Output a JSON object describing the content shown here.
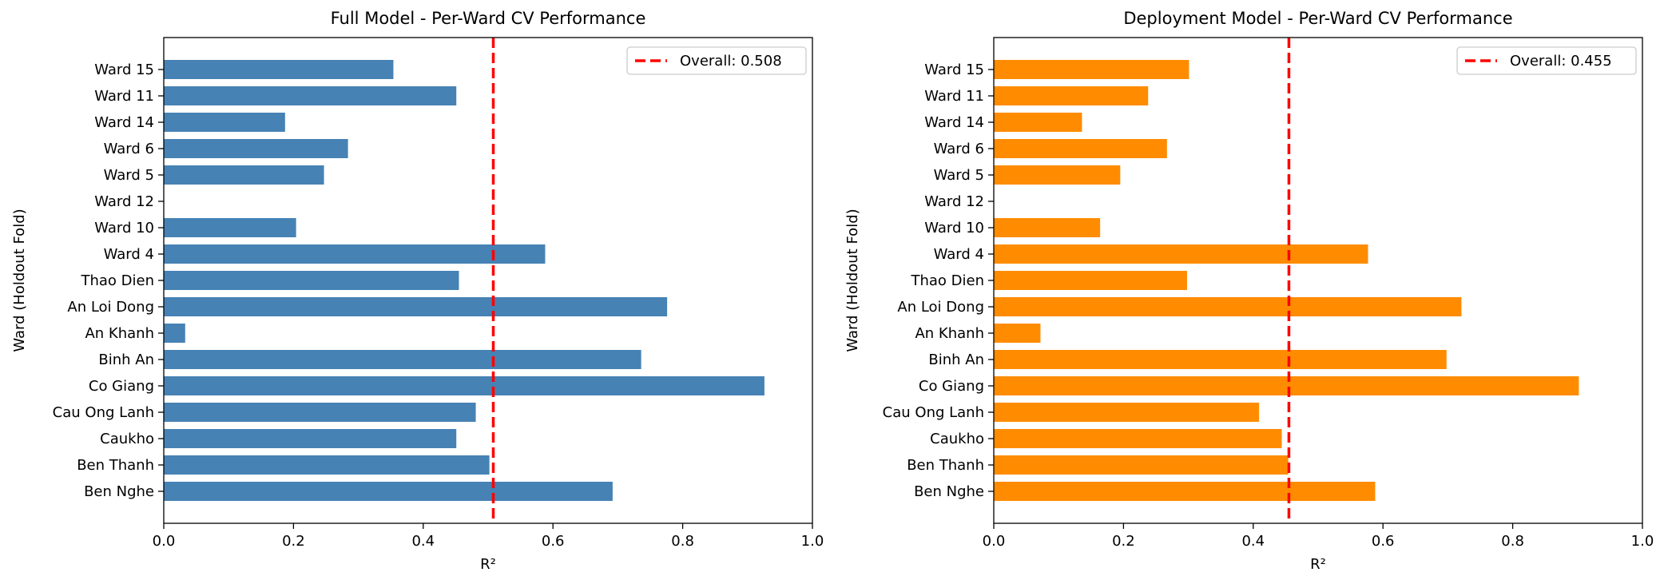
{
  "chart_data": [
    {
      "type": "bar",
      "orientation": "horizontal",
      "title": "Full Model - Per-Ward CV Performance",
      "xlabel": "R²",
      "ylabel": "Ward (Holdout Fold)",
      "xlim": [
        0.0,
        1.0
      ],
      "xticks": [
        "0.0",
        "0.2",
        "0.4",
        "0.6",
        "0.8",
        "1.0"
      ],
      "grid": false,
      "bar_color": "#4682b4",
      "categories": [
        "Ben Nghe",
        "Ben Thanh",
        "Caukho",
        "Cau Ong Lanh",
        "Co Giang",
        "Binh An",
        "An Khanh",
        "An Loi Dong",
        "Thao Dien",
        "Ward 4",
        "Ward 10",
        "Ward 12",
        "Ward 5",
        "Ward 6",
        "Ward 14",
        "Ward 11",
        "Ward 15"
      ],
      "values": [
        0.692,
        0.502,
        0.451,
        0.481,
        0.926,
        0.736,
        0.033,
        0.776,
        0.455,
        0.588,
        0.204,
        null,
        0.247,
        0.284,
        0.187,
        0.451,
        0.354
      ],
      "reference_line": {
        "value": 0.508,
        "label": "Overall: 0.508",
        "color": "#ff0000",
        "style": "dashed"
      },
      "legend_position": "top-right"
    },
    {
      "type": "bar",
      "orientation": "horizontal",
      "title": "Deployment Model - Per-Ward CV Performance",
      "xlabel": "R²",
      "ylabel": "Ward (Holdout Fold)",
      "xlim": [
        0.0,
        1.0
      ],
      "xticks": [
        "0.0",
        "0.2",
        "0.4",
        "0.6",
        "0.8",
        "1.0"
      ],
      "grid": false,
      "bar_color": "#ff8c00",
      "categories": [
        "Ben Nghe",
        "Ben Thanh",
        "Caukho",
        "Cau Ong Lanh",
        "Co Giang",
        "Binh An",
        "An Khanh",
        "An Loi Dong",
        "Thao Dien",
        "Ward 4",
        "Ward 10",
        "Ward 12",
        "Ward 5",
        "Ward 6",
        "Ward 14",
        "Ward 11",
        "Ward 15"
      ],
      "values": [
        0.588,
        0.454,
        0.444,
        0.409,
        0.902,
        0.698,
        0.072,
        0.721,
        0.298,
        0.577,
        0.164,
        null,
        0.195,
        0.267,
        0.136,
        0.238,
        0.301
      ],
      "reference_line": {
        "value": 0.455,
        "label": "Overall: 0.455",
        "color": "#ff0000",
        "style": "dashed"
      },
      "legend_position": "top-right"
    }
  ]
}
